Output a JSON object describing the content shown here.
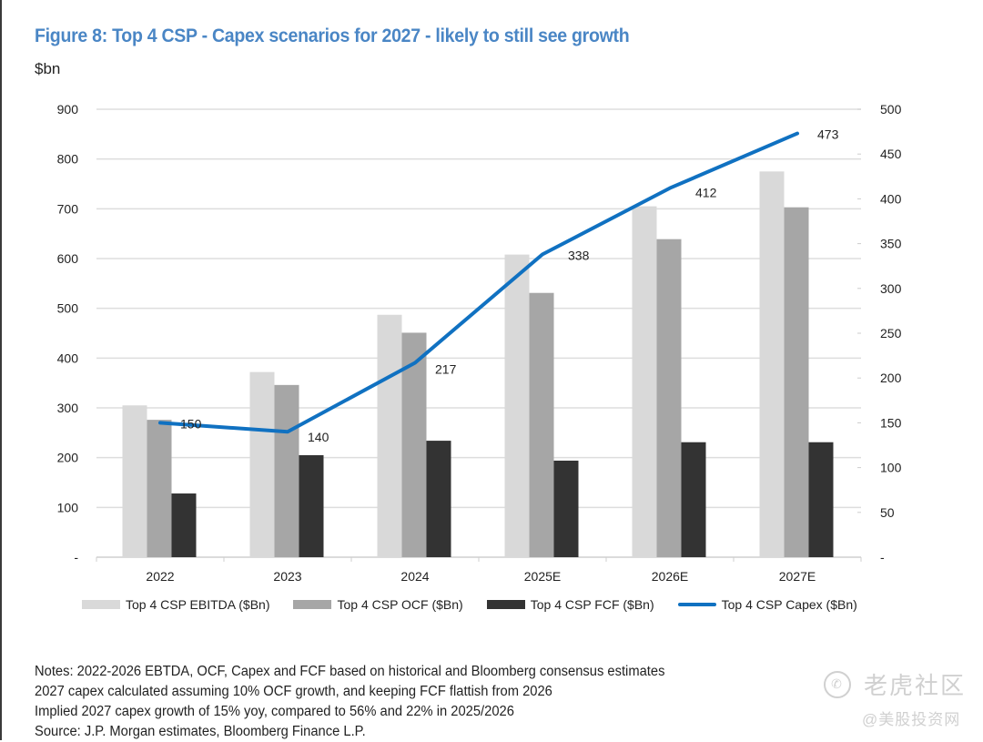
{
  "title": "Figure 8: Top 4 CSP - Capex scenarios for 2027 - likely to still see growth",
  "unit_label": "$bn",
  "notes": [
    "Notes: 2022-2026 EBTDA, OCF, Capex and FCF based on historical and Bloomberg consensus estimates",
    "2027 capex calculated assuming 10% OCF growth, and keeping FCF flattish from 2026",
    "Implied 2027 capex growth of 15% yoy, compared to 56% and 22% in 2025/2026",
    "Source: J.P. Morgan estimates, Bloomberg Finance L.P."
  ],
  "watermark": {
    "main": "老虎社区",
    "sub": "@美股投资网"
  },
  "colors": {
    "title": "#4a86c5",
    "ebitda": "#d9d9d9",
    "ocf": "#a6a6a6",
    "fcf": "#333333",
    "capex": "#1071c1",
    "grid": "#dddddd"
  },
  "chart_data": {
    "type": "bar",
    "title": "Figure 8: Top 4 CSP - Capex scenarios for 2027 - likely to still see growth",
    "xlabel": "",
    "ylabel": "$bn",
    "categories": [
      "2022",
      "2023",
      "2024",
      "2025E",
      "2026E",
      "2027E"
    ],
    "ylim": [
      0,
      900
    ],
    "y_ticks": [
      0,
      100,
      200,
      300,
      400,
      500,
      600,
      700,
      800,
      900
    ],
    "y_tick_labels": [
      "-",
      "100",
      "200",
      "300",
      "400",
      "500",
      "600",
      "700",
      "800",
      "900"
    ],
    "y2lim": [
      0,
      500
    ],
    "y2_ticks": [
      0,
      50,
      100,
      150,
      200,
      250,
      300,
      350,
      400,
      450,
      500
    ],
    "y2_tick_labels": [
      "-",
      "50",
      "100",
      "150",
      "200",
      "250",
      "300",
      "350",
      "400",
      "450",
      "500"
    ],
    "grid": true,
    "legend_position": "bottom",
    "series": [
      {
        "name": "Top 4 CSP EBITDA ($Bn)",
        "type": "bar",
        "axis": "left",
        "values": [
          305,
          372,
          487,
          608,
          705,
          775
        ]
      },
      {
        "name": "Top 4 CSP OCF ($Bn)",
        "type": "bar",
        "axis": "left",
        "values": [
          276,
          346,
          451,
          531,
          639,
          703
        ]
      },
      {
        "name": "Top 4 CSP FCF ($Bn)",
        "type": "bar",
        "axis": "left",
        "values": [
          128,
          205,
          234,
          194,
          231,
          231
        ]
      },
      {
        "name": "Top 4 CSP Capex ($Bn)",
        "type": "line",
        "axis": "right",
        "values": [
          150,
          140,
          217,
          338,
          412,
          473
        ],
        "data_labels": [
          "150",
          "140",
          "217",
          "338",
          "412",
          "473"
        ]
      }
    ]
  }
}
